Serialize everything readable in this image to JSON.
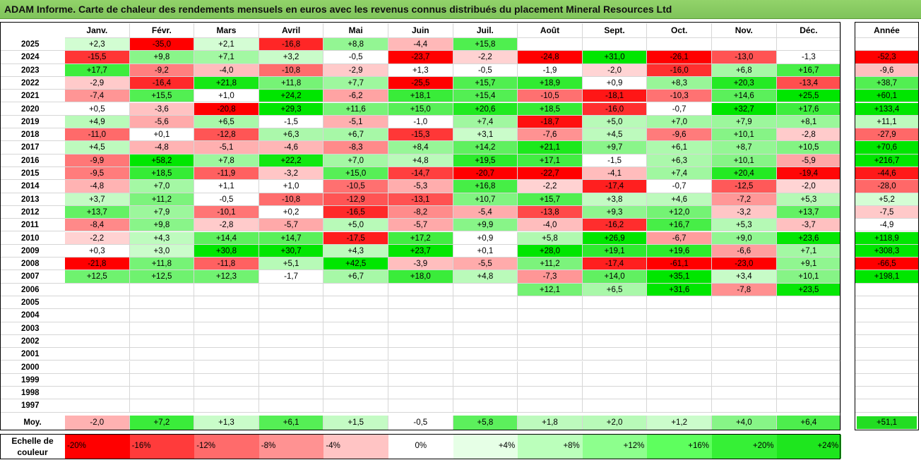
{
  "title": "ADAM Informe. Carte de chaleur des rendements mensuels en euros avec les revenus connus distribués du placement Mineral Resources Ltd",
  "chart_data": {
    "type": "heatmap",
    "title": "ADAM Informe. Carte de chaleur des rendements mensuels en euros avec les revenus connus distribués du placement Mineral Resources Ltd",
    "months": [
      "Janv.",
      "Févr.",
      "Mars",
      "Avril",
      "Mai",
      "Juin",
      "Juil.",
      "Août",
      "Sept.",
      "Oct.",
      "Nov.",
      "Déc."
    ],
    "year_header": "Année",
    "rows": [
      {
        "year": "2025",
        "values": [
          "+2,3",
          "-35,0",
          "+2,1",
          "-16,8",
          "+8,8",
          "-4,4",
          "+15,8",
          "",
          "",
          "",
          "",
          ""
        ],
        "annual": ""
      },
      {
        "year": "2024",
        "values": [
          "-15,5",
          "+9,8",
          "+7,1",
          "+3,2",
          "-0,5",
          "-23,7",
          "-2,2",
          "-24,8",
          "+31,0",
          "-26,1",
          "-13,0",
          "-1,3"
        ],
        "annual": "-52,3"
      },
      {
        "year": "2023",
        "values": [
          "+17,7",
          "-9,2",
          "-4,0",
          "-10,8",
          "-2,9",
          "+1,3",
          "-0,5",
          "-1,9",
          "-2,0",
          "-16,0",
          "+6,8",
          "+16,7"
        ],
        "annual": "-9,6"
      },
      {
        "year": "2022",
        "values": [
          "-2,9",
          "-16,4",
          "+21,8",
          "+11,8",
          "+7,7",
          "-25,5",
          "+15,7",
          "+18,9",
          "+0,9",
          "+8,3",
          "+20,3",
          "-13,4"
        ],
        "annual": "+38,7"
      },
      {
        "year": "2021",
        "values": [
          "-7,4",
          "+15,5",
          "+1,0",
          "+24,2",
          "-6,2",
          "+18,1",
          "+15,4",
          "-10,5",
          "-18,1",
          "-10,3",
          "+14,6",
          "+25,5"
        ],
        "annual": "+60,1"
      },
      {
        "year": "2020",
        "values": [
          "+0,5",
          "-3,6",
          "-20,8",
          "+29,3",
          "+11,6",
          "+15,0",
          "+20,6",
          "+18,5",
          "-16,0",
          "-0,7",
          "+32,7",
          "+17,6"
        ],
        "annual": "+133,4"
      },
      {
        "year": "2019",
        "values": [
          "+4,9",
          "-5,6",
          "+6,5",
          "-1,5",
          "-5,1",
          "-1,0",
          "+7,4",
          "-18,7",
          "+5,0",
          "+7,0",
          "+7,9",
          "+8,1"
        ],
        "annual": "+11,1"
      },
      {
        "year": "2018",
        "values": [
          "-11,0",
          "+0,1",
          "-12,8",
          "+6,3",
          "+6,7",
          "-15,3",
          "+3,1",
          "-7,6",
          "+4,5",
          "-9,6",
          "+10,1",
          "-2,8"
        ],
        "annual": "-27,9"
      },
      {
        "year": "2017",
        "values": [
          "+4,5",
          "-4,8",
          "-5,1",
          "-4,6",
          "-8,3",
          "+8,4",
          "+14,2",
          "+21,1",
          "+9,7",
          "+6,1",
          "+8,7",
          "+10,5"
        ],
        "annual": "+70,6"
      },
      {
        "year": "2016",
        "values": [
          "-9,9",
          "+58,2",
          "+7,8",
          "+22,2",
          "+7,0",
          "+4,8",
          "+19,5",
          "+17,1",
          "-1,5",
          "+6,3",
          "+10,1",
          "-5,9"
        ],
        "annual": "+216,7"
      },
      {
        "year": "2015",
        "values": [
          "-9,5",
          "+18,5",
          "-11,9",
          "-3,2",
          "+15,0",
          "-14,7",
          "-20,7",
          "-22,7",
          "-4,1",
          "+7,4",
          "+20,4",
          "-19,4"
        ],
        "annual": "-44,6"
      },
      {
        "year": "2014",
        "values": [
          "-4,8",
          "+7,0",
          "+1,1",
          "+1,0",
          "-10,5",
          "-5,3",
          "+16,8",
          "-2,2",
          "-17,4",
          "-0,7",
          "-12,5",
          "-2,0"
        ],
        "annual": "-28,0"
      },
      {
        "year": "2013",
        "values": [
          "+3,7",
          "+11,2",
          "-0,5",
          "-10,8",
          "-12,9",
          "-13,1",
          "+10,7",
          "+15,7",
          "+3,8",
          "+4,6",
          "-7,2",
          "+5,3"
        ],
        "annual": "+5,2"
      },
      {
        "year": "2012",
        "values": [
          "+13,7",
          "+7,9",
          "-10,1",
          "+0,2",
          "-16,5",
          "-8,2",
          "-5,4",
          "-13,8",
          "+9,3",
          "+12,0",
          "-3,2",
          "+13,7"
        ],
        "annual": "-7,5"
      },
      {
        "year": "2011",
        "values": [
          "-8,4",
          "+9,8",
          "-2,8",
          "-5,7",
          "+5,0",
          "-5,7",
          "+9,9",
          "-4,0",
          "-16,2",
          "+16,7",
          "+5,3",
          "-3,7"
        ],
        "annual": "-4,9"
      },
      {
        "year": "2010",
        "values": [
          "-2,2",
          "+4,3",
          "+14,4",
          "+14,7",
          "-17,5",
          "+17,2",
          "+0,9",
          "+5,8",
          "+26,9",
          "-6,7",
          "+9,0",
          "+23,6"
        ],
        "annual": "+118,9"
      },
      {
        "year": "2009",
        "values": [
          "+0,3",
          "+3,0",
          "+30,8",
          "+30,7",
          "+4,3",
          "+23,7",
          "+0,1",
          "+28,0",
          "+19,1",
          "+19,6",
          "-6,6",
          "+7,1"
        ],
        "annual": "+308,3"
      },
      {
        "year": "2008",
        "values": [
          "-21,8",
          "+11,8",
          "-11,8",
          "+5,1",
          "+42,5",
          "-3,9",
          "-5,5",
          "+11,2",
          "-17,4",
          "-61,1",
          "-23,0",
          "+9,1"
        ],
        "annual": "-66,5"
      },
      {
        "year": "2007",
        "values": [
          "+12,5",
          "+12,5",
          "+12,3",
          "-1,7",
          "+6,7",
          "+18,0",
          "+4,8",
          "-7,3",
          "+14,0",
          "+35,1",
          "+3,4",
          "+10,1"
        ],
        "annual": "+198,1"
      },
      {
        "year": "2006",
        "values": [
          "",
          "",
          "",
          "",
          "",
          "",
          "",
          "+12,1",
          "+6,5",
          "+31,6",
          "-7,8",
          "+23,5"
        ],
        "annual": ""
      },
      {
        "year": "2005",
        "values": [
          "",
          "",
          "",
          "",
          "",
          "",
          "",
          "",
          "",
          "",
          "",
          ""
        ],
        "annual": ""
      },
      {
        "year": "2004",
        "values": [
          "",
          "",
          "",
          "",
          "",
          "",
          "",
          "",
          "",
          "",
          "",
          ""
        ],
        "annual": ""
      },
      {
        "year": "2003",
        "values": [
          "",
          "",
          "",
          "",
          "",
          "",
          "",
          "",
          "",
          "",
          "",
          ""
        ],
        "annual": ""
      },
      {
        "year": "2002",
        "values": [
          "",
          "",
          "",
          "",
          "",
          "",
          "",
          "",
          "",
          "",
          "",
          ""
        ],
        "annual": ""
      },
      {
        "year": "2001",
        "values": [
          "",
          "",
          "",
          "",
          "",
          "",
          "",
          "",
          "",
          "",
          "",
          ""
        ],
        "annual": ""
      },
      {
        "year": "2000",
        "values": [
          "",
          "",
          "",
          "",
          "",
          "",
          "",
          "",
          "",
          "",
          "",
          ""
        ],
        "annual": ""
      },
      {
        "year": "1999",
        "values": [
          "",
          "",
          "",
          "",
          "",
          "",
          "",
          "",
          "",
          "",
          "",
          ""
        ],
        "annual": ""
      },
      {
        "year": "1998",
        "values": [
          "",
          "",
          "",
          "",
          "",
          "",
          "",
          "",
          "",
          "",
          "",
          ""
        ],
        "annual": ""
      },
      {
        "year": "1997",
        "values": [
          "",
          "",
          "",
          "",
          "",
          "",
          "",
          "",
          "",
          "",
          "",
          ""
        ],
        "annual": ""
      }
    ],
    "average": {
      "label": "Moy.",
      "values": [
        "-2,0",
        "+7,2",
        "+1,3",
        "+6,1",
        "+1,5",
        "-0,5",
        "+5,8",
        "+1,8",
        "+2,0",
        "+1,2",
        "+4,0",
        "+6,4"
      ],
      "annual": "+51,1"
    },
    "color_scale": {
      "label": "Echelle de couleur",
      "stops": [
        "-20%",
        "-16%",
        "-12%",
        "-8%",
        "-4%",
        "0%",
        "+4%",
        "+8%",
        "+12%",
        "+16%",
        "+20%",
        "+24%"
      ],
      "colors": [
        "#ff0000",
        "#ff3b3b",
        "#ff6b6b",
        "#ff9292",
        "#ffc4c4",
        "#ffffff",
        "#e6ffe6",
        "#bbffbb",
        "#8dff8d",
        "#5eff5e",
        "#36f036",
        "#1ee61e"
      ]
    }
  }
}
